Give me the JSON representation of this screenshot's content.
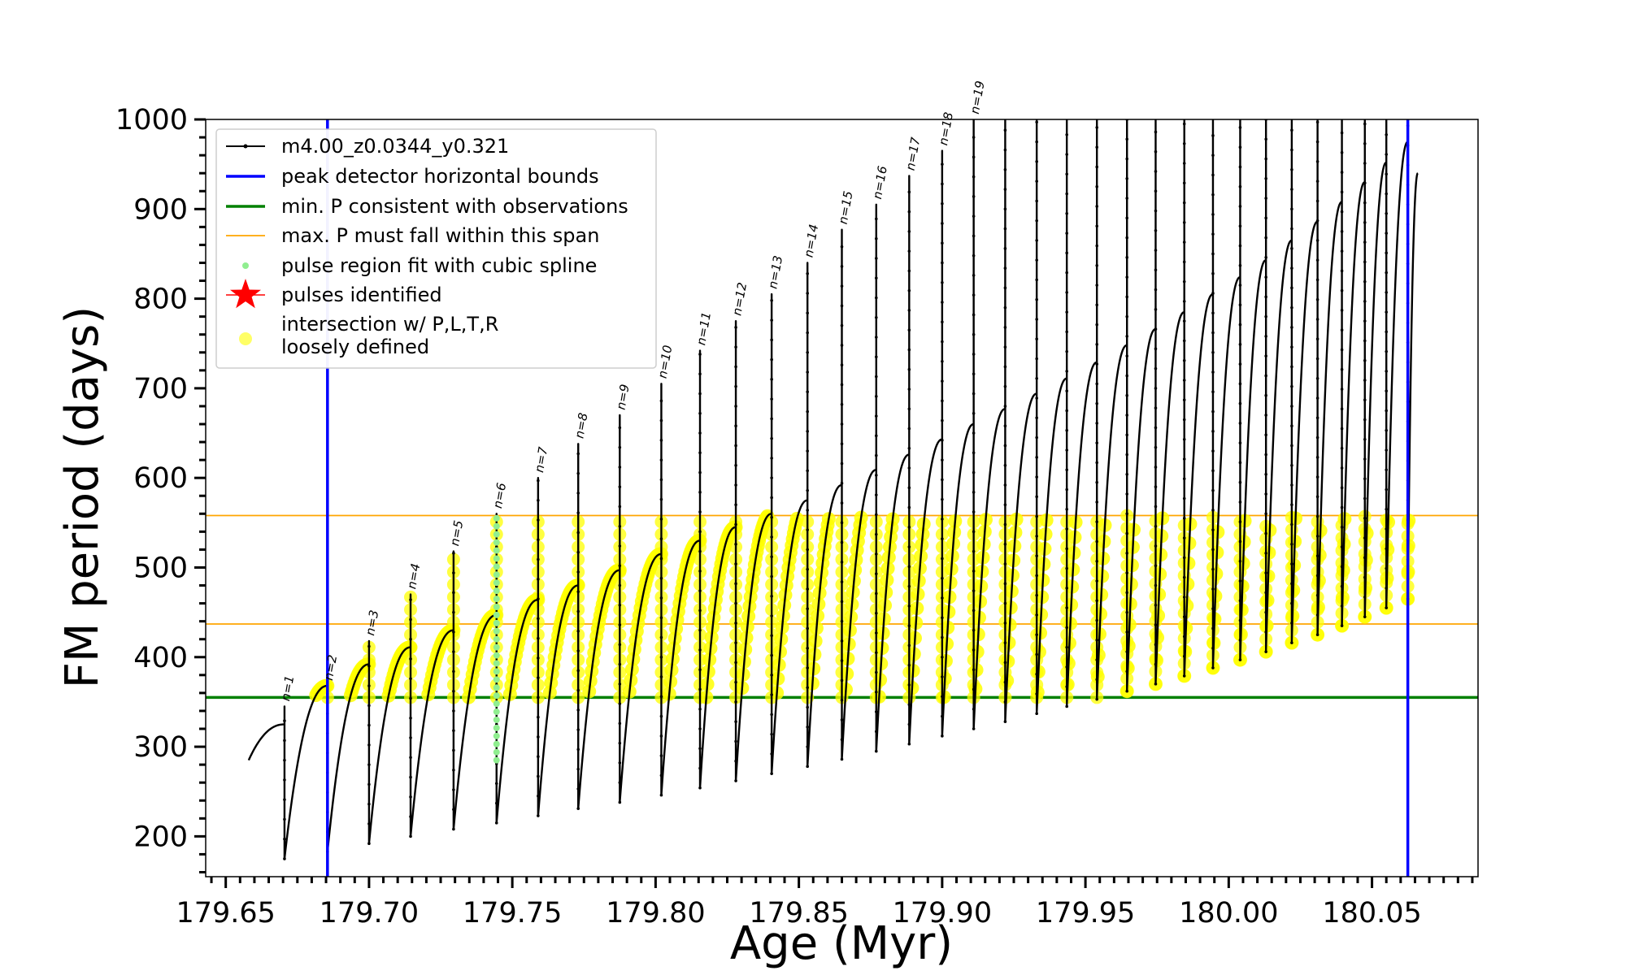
{
  "chart_data": {
    "type": "line",
    "title": "",
    "xlabel": "Age (Myr)",
    "ylabel": "FM period (days)",
    "xlim": [
      179.643,
      180.087
    ],
    "ylim": [
      155,
      1000
    ],
    "x_ticks": [
      "179.65",
      "179.70",
      "179.75",
      "179.80",
      "179.85",
      "179.90",
      "179.95",
      "180.00",
      "180.05"
    ],
    "y_ticks": [
      "200",
      "300",
      "400",
      "500",
      "600",
      "700",
      "800",
      "900",
      "1000"
    ],
    "grid": false,
    "legend_position": "top-left",
    "legend": [
      "m4.00_z0.0344_y0.321",
      "peak detector horizontal bounds",
      "min. P consistent with observations",
      "max. P must fall within this span",
      "pulse region fit with cubic spline",
      "pulses identified",
      "intersection w/ P,L,T,R\nloosely defined"
    ],
    "colors": {
      "track": "#000000",
      "peak_bounds": "#0000ff",
      "min_p": "#008000",
      "max_p_span": "#ffa500",
      "spline": "#90ee90",
      "pulses": "#ff0000",
      "intersection": "#ffff00"
    },
    "vertical_lines": [
      179.6855,
      180.0625
    ],
    "min_p_line": 355,
    "max_p_span": [
      437,
      558
    ],
    "first_cycle": {
      "start_age": 179.658,
      "start_period": 285,
      "peak_period": 325
    },
    "pulses": [
      {
        "label": "n=1",
        "age": 179.6705,
        "peak_period": 345,
        "min_period": 175,
        "spike_top": 345
      },
      {
        "label": "n=2",
        "age": 179.6855,
        "peak_period": 368,
        "min_period": 183,
        "spike_top": 368
      },
      {
        "label": "n=3",
        "age": 179.7,
        "peak_period": 392,
        "min_period": 192,
        "spike_top": 418
      },
      {
        "label": "n=4",
        "age": 179.7145,
        "peak_period": 411,
        "min_period": 200,
        "spike_top": 470
      },
      {
        "label": "n=5",
        "age": 179.7295,
        "peak_period": 430,
        "min_period": 208,
        "spike_top": 518
      },
      {
        "label": "n=6",
        "age": 179.7445,
        "peak_period": 447,
        "min_period": 215,
        "spike_top": 560
      },
      {
        "label": "n=7",
        "age": 179.759,
        "peak_period": 464,
        "min_period": 223,
        "spike_top": 600
      },
      {
        "label": "n=8",
        "age": 179.773,
        "peak_period": 480,
        "min_period": 231,
        "spike_top": 638
      },
      {
        "label": "n=9",
        "age": 179.7875,
        "peak_period": 497,
        "min_period": 238,
        "spike_top": 670
      },
      {
        "label": "n=10",
        "age": 179.802,
        "peak_period": 515,
        "min_period": 246,
        "spike_top": 705
      },
      {
        "label": "n=11",
        "age": 179.8155,
        "peak_period": 530,
        "min_period": 254,
        "spike_top": 742
      },
      {
        "label": "n=12",
        "age": 179.828,
        "peak_period": 545,
        "min_period": 262,
        "spike_top": 775
      },
      {
        "label": "n=13",
        "age": 179.8405,
        "peak_period": 560,
        "min_period": 270,
        "spike_top": 805
      },
      {
        "label": "n=14",
        "age": 179.853,
        "peak_period": 575,
        "min_period": 278,
        "spike_top": 840
      },
      {
        "label": "n=15",
        "age": 179.865,
        "peak_period": 592,
        "min_period": 286,
        "spike_top": 877
      },
      {
        "label": "n=16",
        "age": 179.877,
        "peak_period": 609,
        "min_period": 295,
        "spike_top": 905
      },
      {
        "label": "n=17",
        "age": 179.8885,
        "peak_period": 626,
        "min_period": 303,
        "spike_top": 937
      },
      {
        "label": "n=18",
        "age": 179.9,
        "peak_period": 643,
        "min_period": 312,
        "spike_top": 965
      },
      {
        "label": "n=19",
        "age": 179.911,
        "peak_period": 660,
        "min_period": 320,
        "spike_top": 1000
      },
      {
        "label": "",
        "age": 179.922,
        "peak_period": 677,
        "min_period": 328,
        "spike_top": 1000
      },
      {
        "label": "",
        "age": 179.933,
        "peak_period": 694,
        "min_period": 337,
        "spike_top": 1000
      },
      {
        "label": "",
        "age": 179.9435,
        "peak_period": 711,
        "min_period": 345,
        "spike_top": 1000
      },
      {
        "label": "",
        "age": 179.954,
        "peak_period": 729,
        "min_period": 353,
        "spike_top": 1000
      },
      {
        "label": "",
        "age": 179.9645,
        "peak_period": 748,
        "min_period": 362,
        "spike_top": 1000
      },
      {
        "label": "",
        "age": 179.9745,
        "peak_period": 766,
        "min_period": 370,
        "spike_top": 1000
      },
      {
        "label": "",
        "age": 179.9845,
        "peak_period": 785,
        "min_period": 379,
        "spike_top": 1000
      },
      {
        "label": "",
        "age": 179.9945,
        "peak_period": 805,
        "min_period": 388,
        "spike_top": 1000
      },
      {
        "label": "",
        "age": 180.004,
        "peak_period": 824,
        "min_period": 397,
        "spike_top": 1000
      },
      {
        "label": "",
        "age": 180.013,
        "peak_period": 843,
        "min_period": 406,
        "spike_top": 1000
      },
      {
        "label": "",
        "age": 180.022,
        "peak_period": 865,
        "min_period": 416,
        "spike_top": 1000
      },
      {
        "label": "",
        "age": 180.031,
        "peak_period": 886,
        "min_period": 425,
        "spike_top": 1000
      },
      {
        "label": "",
        "age": 180.0395,
        "peak_period": 908,
        "min_period": 435,
        "spike_top": 1000
      },
      {
        "label": "",
        "age": 180.0475,
        "peak_period": 930,
        "min_period": 445,
        "spike_top": 1000
      },
      {
        "label": "",
        "age": 180.055,
        "peak_period": 952,
        "min_period": 455,
        "spike_top": 1000
      },
      {
        "label": "",
        "age": 180.0625,
        "peak_period": 975,
        "min_period": 465,
        "spike_top": 1000
      }
    ],
    "final_segment": {
      "end_age": 180.066,
      "end_period": 940
    }
  }
}
